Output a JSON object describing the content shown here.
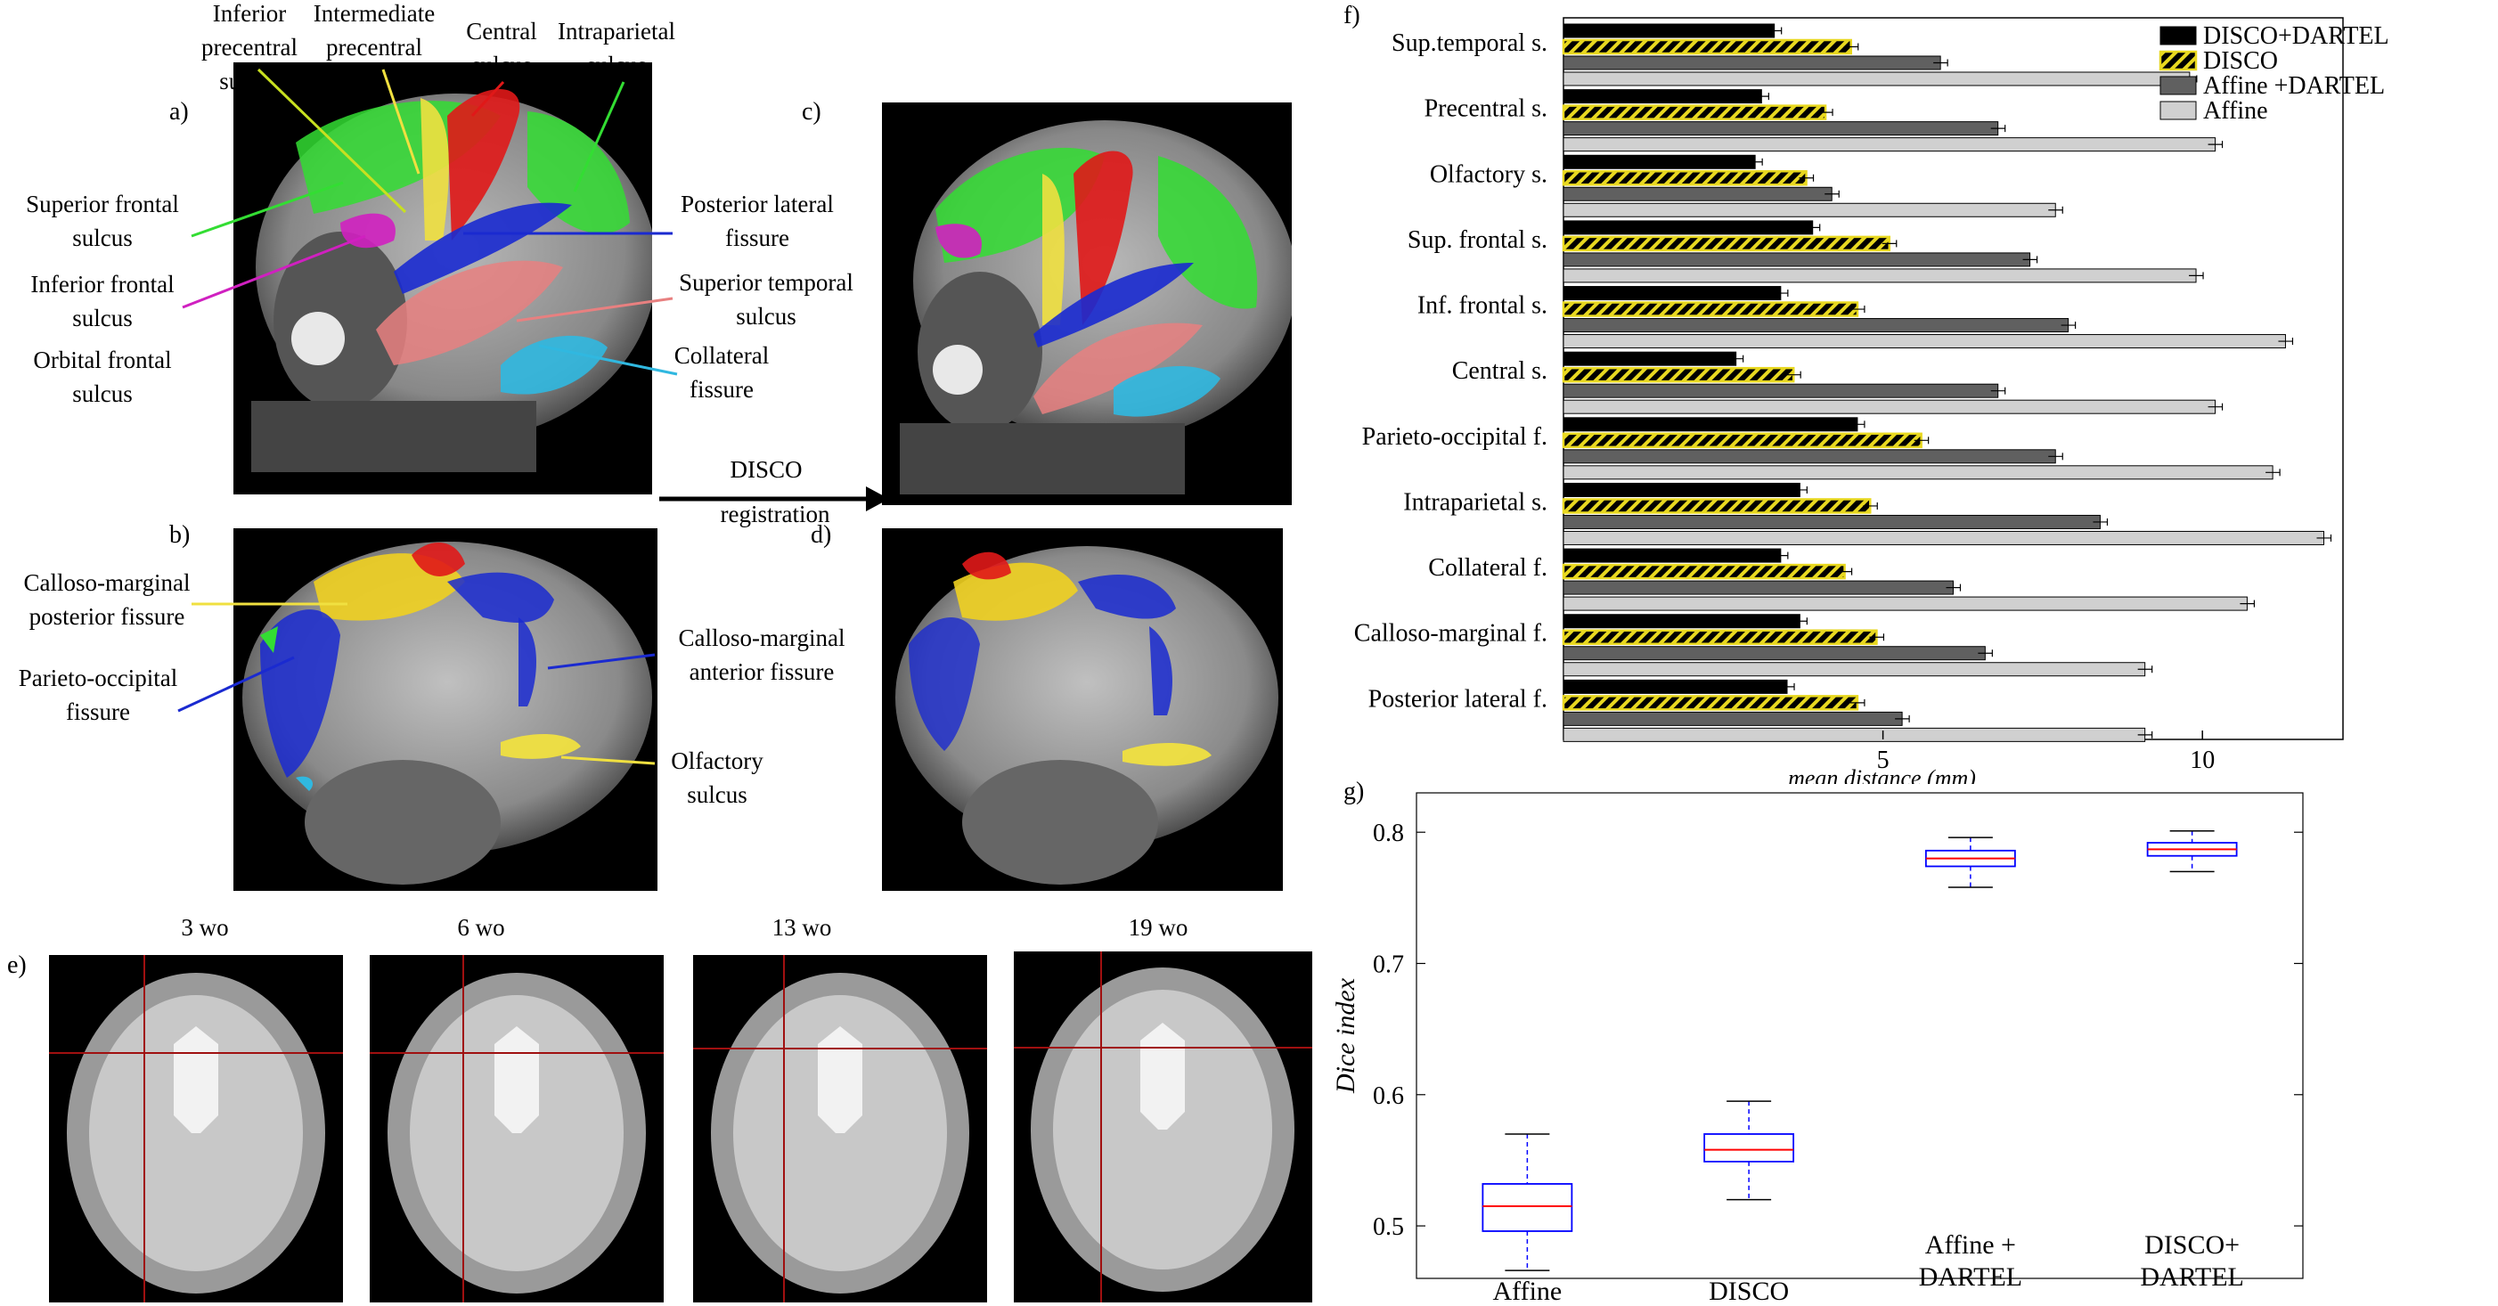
{
  "panels": {
    "a": "a)",
    "b": "b)",
    "c": "c)",
    "d": "d)",
    "e": "e)",
    "f": "f)",
    "g": "g)"
  },
  "labels_a": {
    "inferior_precentral": "Inferior precentral sulcus",
    "intermediate_precentral": "Intermediate precentral sulcus",
    "central": "Central sulcus",
    "intraparietal": "Intraparietal sulcus",
    "superior_frontal": "Superior frontal sulcus",
    "inferior_frontal": "Inferior frontal sulcus",
    "orbital_frontal": "Orbital frontal sulcus",
    "posterior_lateral": "Posterior lateral fissure",
    "superior_temporal": "Superior temporal sulcus",
    "collateral": "Collateral fissure"
  },
  "labels_b": {
    "calloso_posterior": "Calloso-marginal posterior fissure",
    "parieto_occipital": "Parieto-occipital fissure",
    "calloso_anterior": "Calloso-marginal anterior fissure",
    "olfactory": "Olfactory sulcus"
  },
  "arrow": {
    "line1": "DISCO",
    "line2": "registration"
  },
  "ages": [
    "3 wo",
    "6 wo",
    "13 wo",
    "19 wo"
  ],
  "colors": {
    "green": "#33dd33",
    "red": "#e01818",
    "yellow": "#f0e040",
    "magenta": "#d020c0",
    "blue": "#1a2ad0",
    "pink": "#e88080",
    "cyan": "#30b8e0",
    "crosshair": "#a01010"
  },
  "chart_data": [
    {
      "type": "bar",
      "orientation": "horizontal",
      "categories": [
        "Sup.temporal s.",
        "Precentral s.",
        "Olfactory s.",
        "Sup. frontal s.",
        "Inf. frontal s.",
        "Central s.",
        "Parieto-occipital f.",
        "Intraparietal  s.",
        "Collateral f.",
        "Calloso-marginal f.",
        "Posterior lateral f."
      ],
      "series": [
        {
          "name": "DISCO+DARTEL",
          "color": "#000000",
          "values": [
            3.3,
            3.1,
            3.0,
            3.9,
            3.4,
            2.7,
            4.6,
            3.7,
            3.4,
            3.7,
            3.5
          ]
        },
        {
          "name": "DISCO",
          "color": "#f0e020",
          "values": [
            4.5,
            4.1,
            3.8,
            5.1,
            4.6,
            3.6,
            5.6,
            4.8,
            4.4,
            4.9,
            4.6
          ]
        },
        {
          "name": "Affine +DARTEL",
          "color": "#606060",
          "values": [
            5.9,
            6.8,
            4.2,
            7.3,
            7.9,
            6.8,
            7.7,
            8.4,
            6.1,
            6.6,
            5.3
          ]
        },
        {
          "name": "Affine",
          "color": "#d0d0d0",
          "values": [
            9.8,
            10.2,
            7.7,
            9.9,
            11.3,
            10.2,
            11.1,
            11.9,
            10.7,
            9.1,
            9.1
          ]
        }
      ],
      "xlabel": "mean distance (mm)",
      "xticks": [
        5,
        10
      ],
      "xlim": [
        0,
        12.2
      ],
      "legend": "top-right"
    },
    {
      "type": "box",
      "categories": [
        "Affine",
        "DISCO",
        "Affine + DARTEL",
        "DISCO+ DARTEL"
      ],
      "boxes": [
        {
          "min": 0.466,
          "q1": 0.496,
          "median": 0.515,
          "q3": 0.532,
          "max": 0.57
        },
        {
          "min": 0.52,
          "q1": 0.549,
          "median": 0.558,
          "q3": 0.57,
          "max": 0.595
        },
        {
          "min": 0.758,
          "q1": 0.774,
          "median": 0.78,
          "q3": 0.786,
          "max": 0.796
        },
        {
          "min": 0.77,
          "q1": 0.782,
          "median": 0.787,
          "q3": 0.792,
          "max": 0.801
        }
      ],
      "ylabel": "Dice index",
      "yticks": [
        0.5,
        0.6,
        0.7,
        0.8
      ],
      "ylim": [
        0.46,
        0.83
      ],
      "box_color": "#0000ff",
      "median_color": "#ff0000"
    }
  ]
}
